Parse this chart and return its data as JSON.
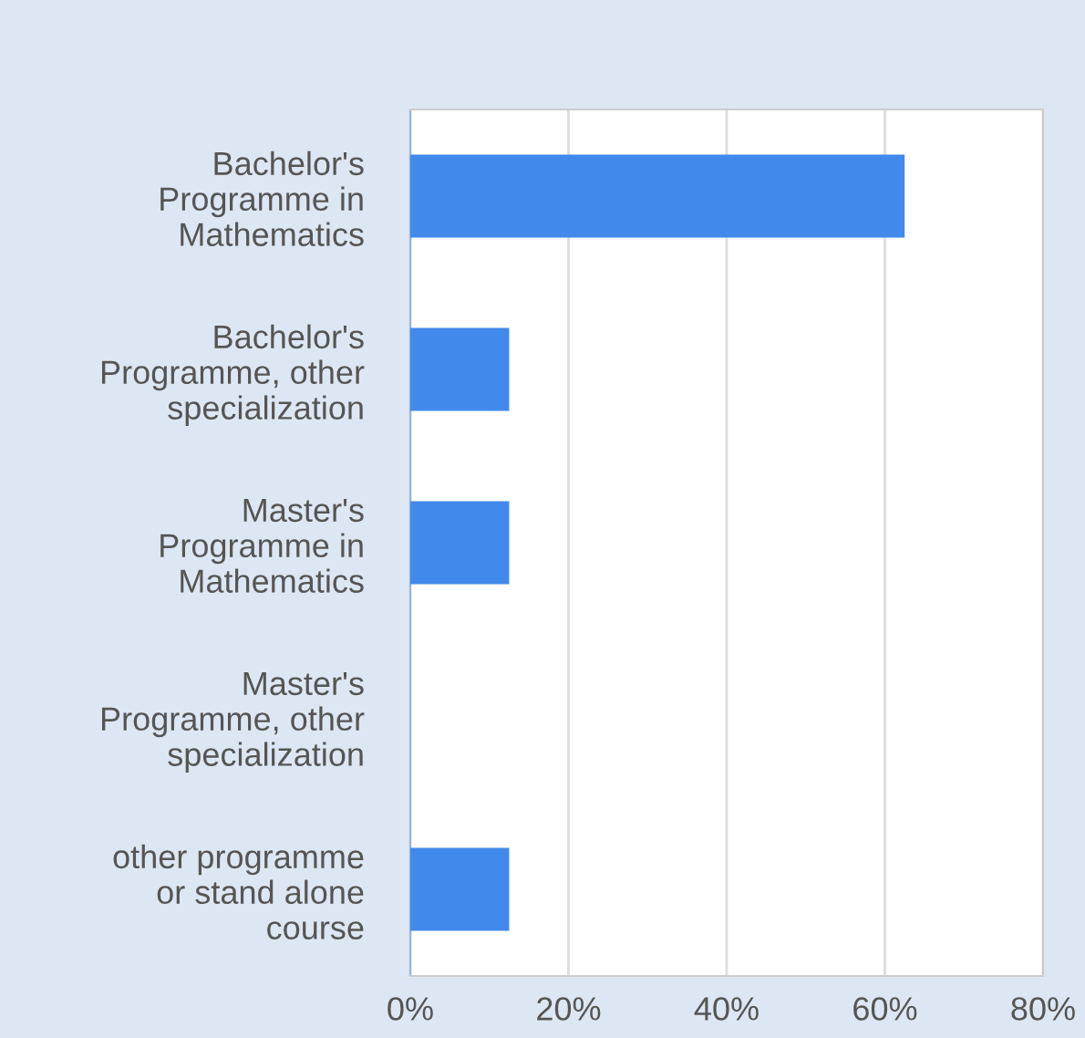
{
  "chart_data": {
    "type": "bar",
    "orientation": "horizontal",
    "categories": [
      "Bachelor's\nProgramme in\nMathematics",
      "Bachelor's\nProgramme, other\nspecialization",
      "Master's\nProgramme in\nMathematics",
      "Master's\nProgramme, other\nspecialization",
      "other programme\nor stand alone\ncourse"
    ],
    "values": [
      62.5,
      12.5,
      12.5,
      0,
      12.5
    ],
    "color": "#4289ec",
    "xlim": [
      0,
      80
    ],
    "xticks": [
      {
        "value": 0,
        "label": "0%"
      },
      {
        "value": 20,
        "label": "20%"
      },
      {
        "value": 40,
        "label": "40%"
      },
      {
        "value": 60,
        "label": "60%"
      },
      {
        "value": 80,
        "label": "80%"
      }
    ],
    "grid": "x",
    "legend": false
  }
}
